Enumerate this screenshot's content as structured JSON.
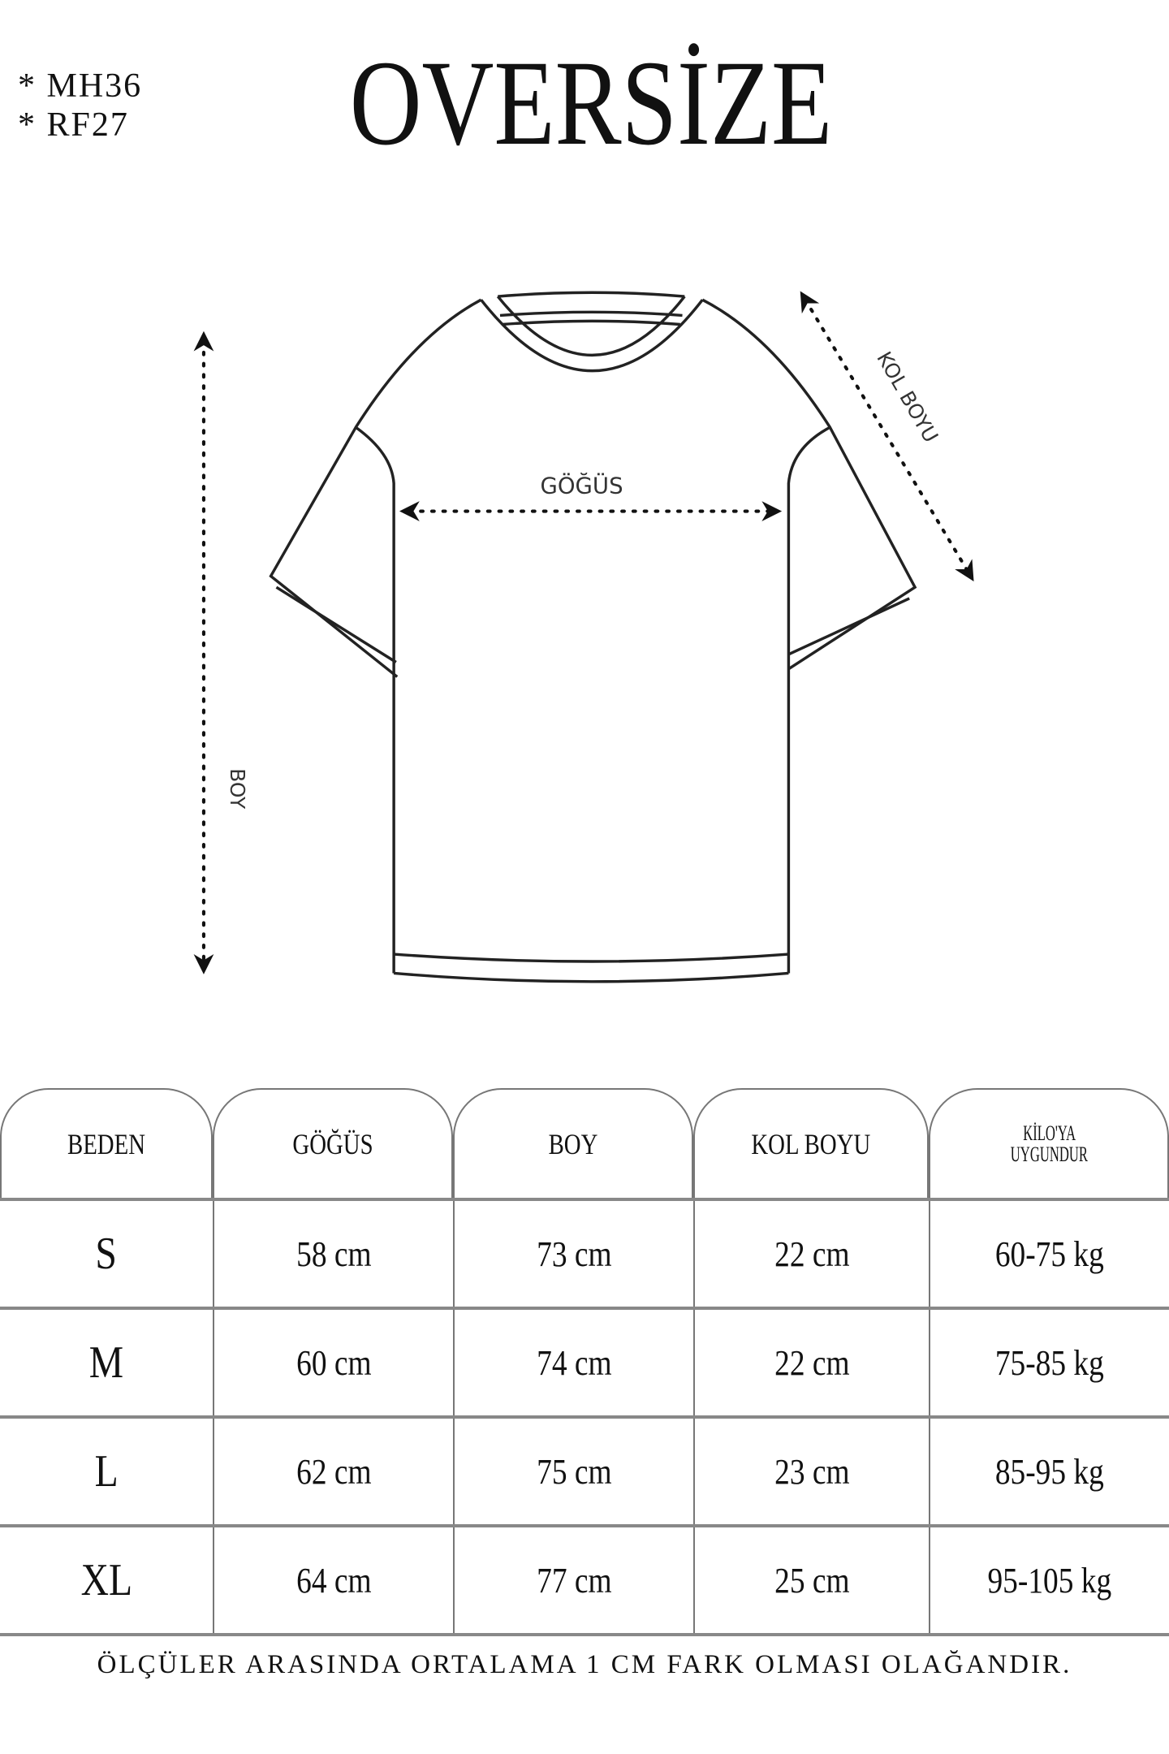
{
  "codes": [
    "* MH36",
    "* RF27"
  ],
  "title": "OVERSİZE",
  "diagram": {
    "chest_label": "GÖĞÜS",
    "length_label": "BOY",
    "sleeve_label": "KOL BOYU"
  },
  "table": {
    "headers": [
      "BEDEN",
      "GÖĞÜS",
      "BOY",
      "KOL BOYU",
      "KİLO'YA UYGUNDUR"
    ],
    "header_weight_lines": [
      "KİLO'YA",
      "UYGUNDUR"
    ],
    "rows": [
      [
        "S",
        "58 cm",
        "73 cm",
        "22  cm",
        "60-75 kg"
      ],
      [
        "M",
        "60 cm",
        "74 cm",
        "22 cm",
        "75-85 kg"
      ],
      [
        "L",
        "62 cm",
        "75 cm",
        "23 cm",
        "85-95 kg"
      ],
      [
        "XL",
        "64 cm",
        "77 cm",
        "25 cm",
        "95-105 kg"
      ]
    ]
  },
  "note": "ÖLÇÜLER ARASINDA ORTALAMA 1 CM FARK OLMASI OLAĞANDIR."
}
